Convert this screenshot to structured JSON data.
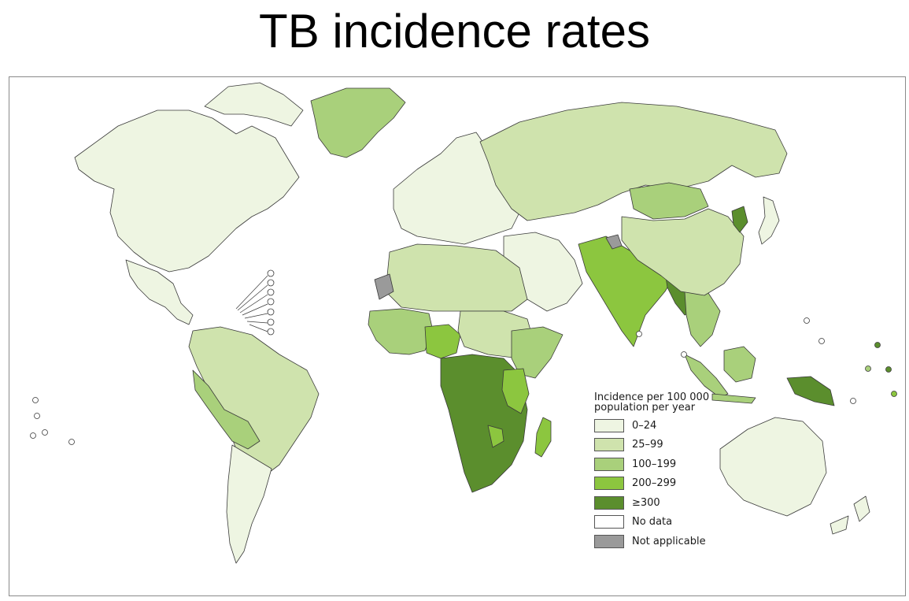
{
  "title": "TB incidence rates",
  "legend": {
    "title": "Incidence per 100 000 population per year",
    "items": [
      {
        "label": "0–24",
        "color": "#eef5e2"
      },
      {
        "label": "25–99",
        "color": "#cfe3ad"
      },
      {
        "label": "100–199",
        "color": "#a9d07b"
      },
      {
        "label": "200–299",
        "color": "#8cc63f"
      },
      {
        "label": "≥300",
        "color": "#5b8e2d"
      },
      {
        "label": "No data",
        "color": "#ffffff"
      },
      {
        "label": "Not applicable",
        "color": "#9a9a9a"
      }
    ]
  },
  "regions": [
    {
      "name": "north-america",
      "category": "0–24"
    },
    {
      "name": "greenland",
      "category": "100–199"
    },
    {
      "name": "central-america",
      "category": "0–24"
    },
    {
      "name": "south-america",
      "category": "25–99"
    },
    {
      "name": "peru-bolivia",
      "category": "100–199"
    },
    {
      "name": "southern-cone",
      "category": "0–24"
    },
    {
      "name": "europe",
      "category": "0–24"
    },
    {
      "name": "russia-central-asia",
      "category": "25–99"
    },
    {
      "name": "middle-east",
      "category": "0–24"
    },
    {
      "name": "north-africa",
      "category": "25–99"
    },
    {
      "name": "sahel",
      "category": "25–99"
    },
    {
      "name": "west-africa",
      "category": "100–199"
    },
    {
      "name": "western-sahara",
      "category": "Not applicable"
    },
    {
      "name": "nigeria",
      "category": "200–299"
    },
    {
      "name": "central-southern-africa",
      "category": "≥300"
    },
    {
      "name": "east-africa",
      "category": "100–199"
    },
    {
      "name": "kenya-tanzania",
      "category": "200–299"
    },
    {
      "name": "madagascar",
      "category": "200–299"
    },
    {
      "name": "south-asia",
      "category": "200–299"
    },
    {
      "name": "kashmir",
      "category": "Not applicable"
    },
    {
      "name": "myanmar",
      "category": "≥300"
    },
    {
      "name": "southeast-asia",
      "category": "100–199"
    },
    {
      "name": "mongolia",
      "category": "100–199"
    },
    {
      "name": "china",
      "category": "25–99"
    },
    {
      "name": "north-korea",
      "category": "≥300"
    },
    {
      "name": "japan",
      "category": "0–24"
    },
    {
      "name": "indonesia",
      "category": "100–199"
    },
    {
      "name": "papua-new-guinea",
      "category": "≥300"
    },
    {
      "name": "australia",
      "category": "0–24"
    },
    {
      "name": "new-zealand",
      "category": "0–24"
    }
  ]
}
